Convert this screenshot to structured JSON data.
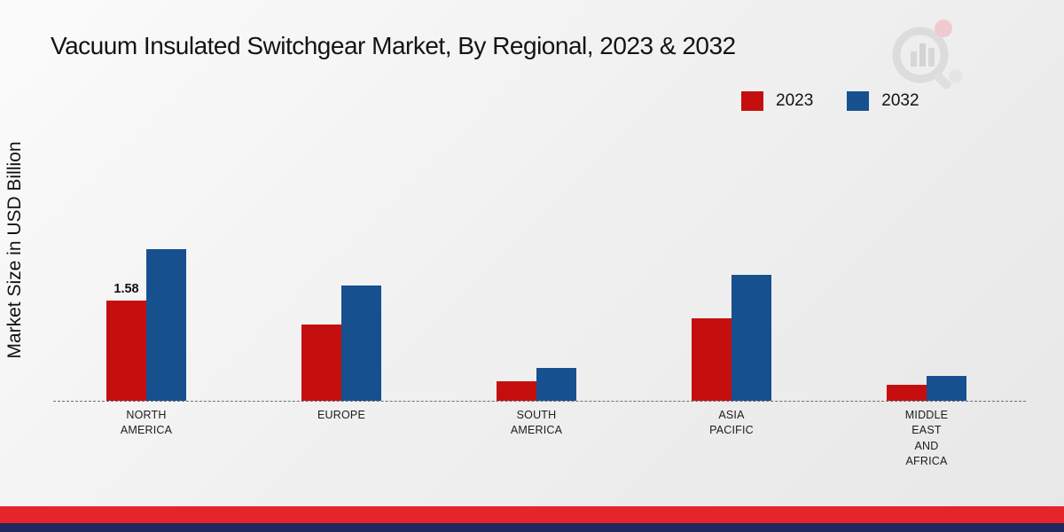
{
  "page": {
    "title": "Vacuum Insulated Switchgear Market, By Regional, 2023 & 2032"
  },
  "chart_data": {
    "type": "bar",
    "title": "Vacuum Insulated Switchgear Market, By Regional, 2023 & 2032",
    "ylabel": "Market Size in USD Billion",
    "xlabel": "",
    "units": "USD Billion",
    "categories": [
      "NORTH AMERICA",
      "EUROPE",
      "SOUTH AMERICA",
      "ASIA PACIFIC",
      "MIDDLE EAST AND AFRICA"
    ],
    "category_label_lines": [
      [
        "NORTH",
        "AMERICA"
      ],
      [
        "EUROPE"
      ],
      [
        "SOUTH",
        "AMERICA"
      ],
      [
        "ASIA",
        "PACIFIC"
      ],
      [
        "MIDDLE",
        "EAST",
        "AND",
        "AFRICA"
      ]
    ],
    "series": [
      {
        "name": "2023",
        "color": "#c50f0f",
        "values": [
          1.58,
          1.2,
          0.3,
          1.29,
          0.25
        ]
      },
      {
        "name": "2032",
        "color": "#17508f",
        "values": [
          2.39,
          1.81,
          0.51,
          1.98,
          0.39
        ]
      }
    ],
    "data_labels": [
      {
        "series_index": 0,
        "category_index": 0,
        "text": "1.58"
      }
    ],
    "ylim": [
      0,
      6.3
    ],
    "grid": false,
    "legend_position": "top-right",
    "baseline_style": "dashed"
  },
  "legend": {
    "items": [
      {
        "label": "2023",
        "color": "#c50f0f"
      },
      {
        "label": "2032",
        "color": "#17508f"
      }
    ]
  },
  "footer": {
    "red_band_color": "#e5252a",
    "navy_band_color": "#20295d"
  },
  "watermark": {
    "label": "market-research-logo"
  }
}
